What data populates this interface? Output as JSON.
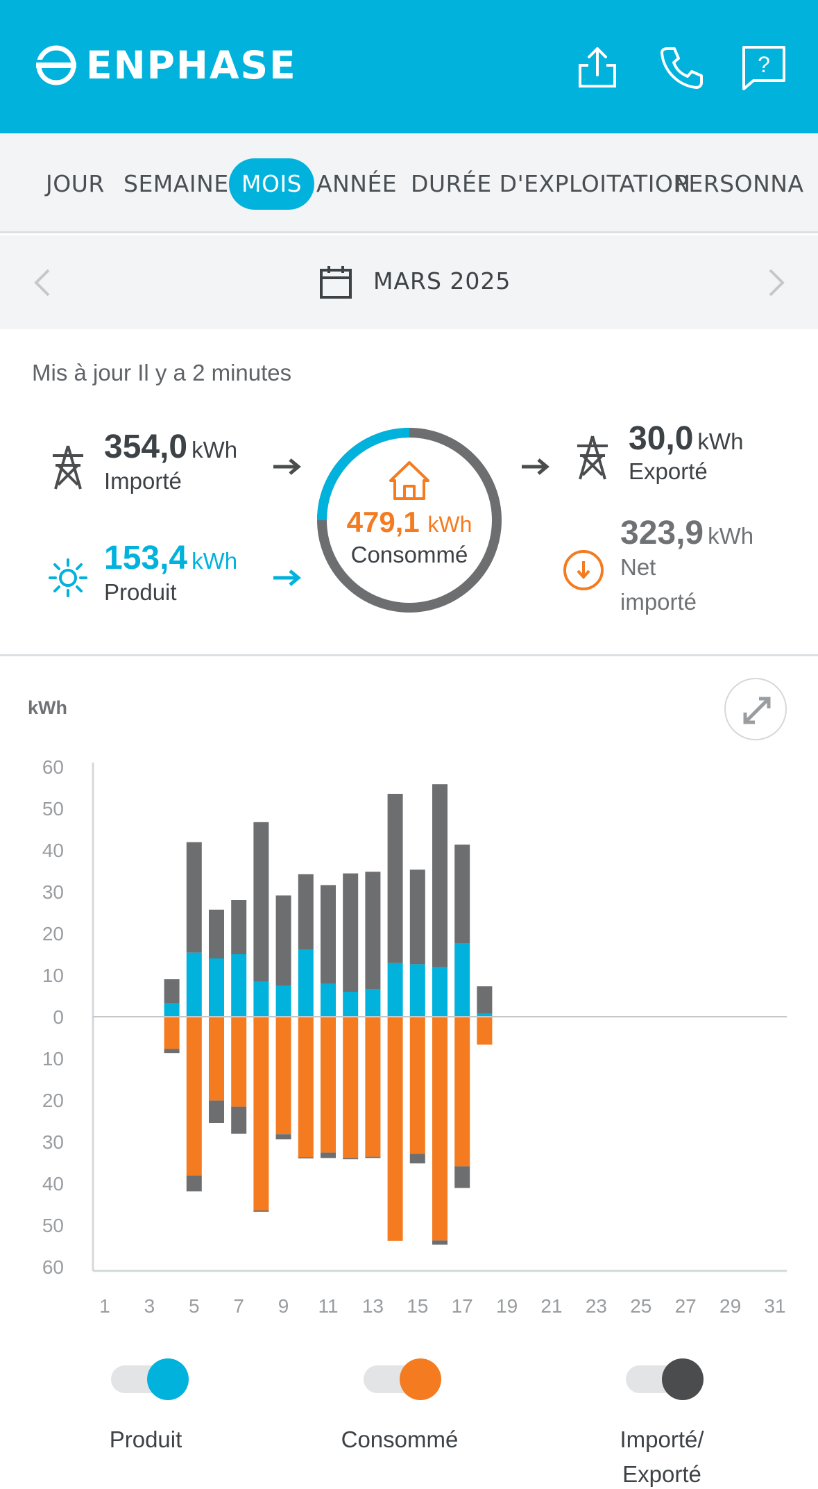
{
  "header": {
    "brand": "ENPHASE",
    "icons": [
      "share-icon",
      "phone-icon",
      "help-icon"
    ]
  },
  "tabs": [
    {
      "label": "JOUR",
      "active": false
    },
    {
      "label": "SEMAINE",
      "active": false
    },
    {
      "label": "MOIS",
      "active": true
    },
    {
      "label": "ANNÉE",
      "active": false
    },
    {
      "label": "DURÉE D'EXPLOITATION",
      "active": false
    },
    {
      "label": "PERSONNA",
      "active": false
    }
  ],
  "period": {
    "label": "MARS 2025"
  },
  "summary": {
    "updated": "Mis à jour Il y a 2 minutes",
    "imported": {
      "value": "354,0",
      "unit": "kWh",
      "label": "Importé"
    },
    "produced": {
      "value": "153,4",
      "unit": "kWh",
      "label": "Produit"
    },
    "consumed": {
      "value": "479,1",
      "unit": "kWh",
      "label": "Consommé"
    },
    "exported": {
      "value": "30,0",
      "unit": "kWh",
      "label": "Exporté"
    },
    "net": {
      "value": "323,9",
      "unit": "kWh",
      "label_line1": "Net",
      "label_line2": "importé"
    }
  },
  "colors": {
    "brand": "#00b2dc",
    "produced": "#00b2dc",
    "consumed": "#f47b20",
    "grid": "#6d6e70"
  },
  "chart": {
    "unit_label": "kWh"
  },
  "chart_data": {
    "type": "bar",
    "ylim": [
      -60,
      60
    ],
    "yticks": [
      60,
      50,
      40,
      30,
      20,
      10,
      0,
      10,
      20,
      30,
      40,
      50,
      60
    ],
    "xticks": [
      1,
      3,
      5,
      7,
      9,
      11,
      13,
      15,
      17,
      19,
      21,
      23,
      25,
      27,
      29,
      31
    ],
    "days": [
      4,
      5,
      6,
      7,
      8,
      9,
      10,
      11,
      12,
      13,
      14,
      15,
      16,
      17,
      18
    ],
    "series": [
      {
        "name": "Produit",
        "values": [
          3.2,
          15.4,
          14.0,
          15.0,
          8.5,
          7.5,
          16.1,
          8.0,
          6.0,
          6.6,
          12.9,
          12.6,
          11.9,
          17.6,
          0.7
        ]
      },
      {
        "name": "Importé/ Exporté",
        "values": [
          5.8,
          26.5,
          11.7,
          13.0,
          38.2,
          21.6,
          18.1,
          23.6,
          28.4,
          28.2,
          40.6,
          22.7,
          43.9,
          23.7,
          6.6
        ]
      },
      {
        "name": "Consommé",
        "values": [
          -7.7,
          -38.1,
          -20.1,
          -21.6,
          -46.5,
          -28.2,
          -33.7,
          -32.6,
          -33.9,
          -33.6,
          -53.8,
          -32.9,
          -53.7,
          -35.9,
          -6.7
        ]
      },
      {
        "name": "Importé/ Exporté (consommation)",
        "values": [
          -1.0,
          -3.8,
          -5.4,
          -6.5,
          -0.3,
          -1.2,
          -0.3,
          -1.3,
          -0.3,
          -0.3,
          0,
          -2.3,
          -1.0,
          -5.2,
          0
        ]
      }
    ]
  },
  "legend": [
    {
      "label": "Produit",
      "color": "#00b2dc",
      "on": true
    },
    {
      "label": "Consommé",
      "color": "#f47b20",
      "on": true
    },
    {
      "label_line1": "Importé/",
      "label_line2": "Exporté",
      "color": "#4b4c4e",
      "on": true
    }
  ]
}
